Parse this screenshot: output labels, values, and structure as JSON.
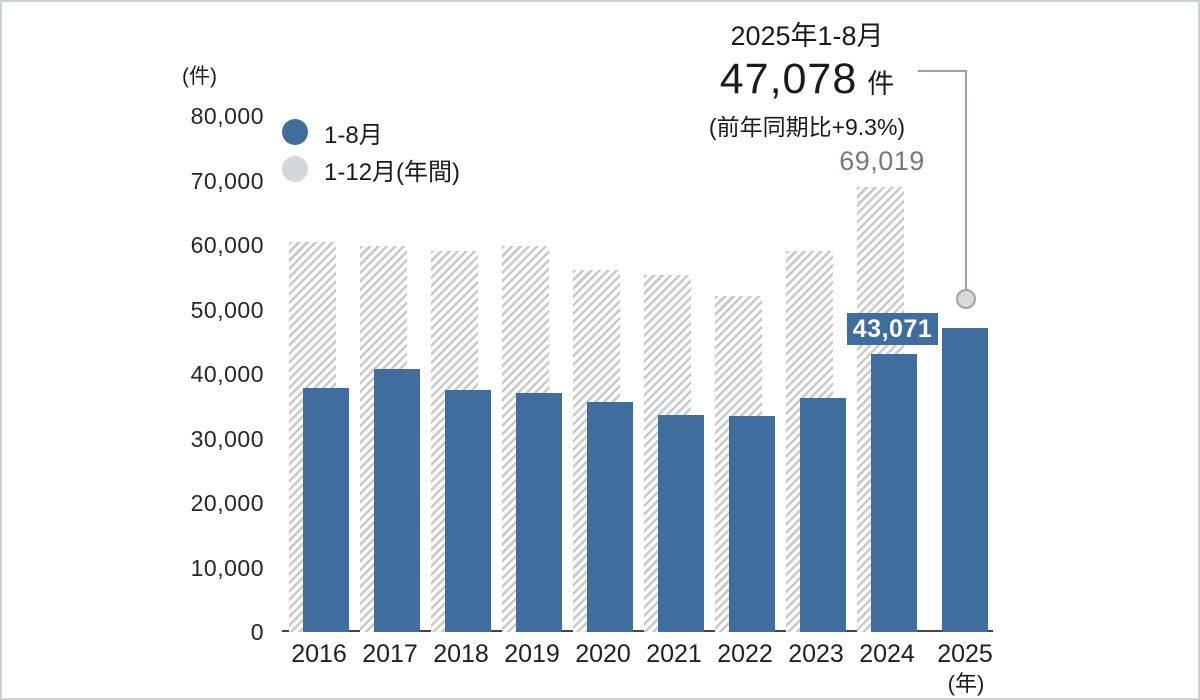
{
  "colors": {
    "bar_partial": "#3f6d9d",
    "bar_annual_hatch": "#c9c9c9",
    "legend_annual_dot": "#d3d7db",
    "annual_label_text": "#6e7a87",
    "connector": "#9aa1a8",
    "axis_line": "#454545"
  },
  "chart_data": {
    "type": "bar",
    "unit_label": "(件)",
    "x_unit_label": "(年)",
    "grid": false,
    "legend_position": "top-left",
    "ylim": [
      0,
      80000
    ],
    "ytick_step": 10000,
    "yticks": [
      {
        "value": 0,
        "label": "0"
      },
      {
        "value": 10000,
        "label": "10,000"
      },
      {
        "value": 20000,
        "label": "20,000"
      },
      {
        "value": 30000,
        "label": "30,000"
      },
      {
        "value": 40000,
        "label": "40,000"
      },
      {
        "value": 50000,
        "label": "50,000"
      },
      {
        "value": 60000,
        "label": "60,000"
      },
      {
        "value": 70000,
        "label": "70,000"
      },
      {
        "value": 80000,
        "label": "80,000"
      }
    ],
    "categories": [
      "2016",
      "2017",
      "2018",
      "2019",
      "2020",
      "2021",
      "2022",
      "2023",
      "2024",
      "2025"
    ],
    "series": [
      {
        "name": "1-8月",
        "key": "partial",
        "color": "#3f6d9d",
        "values": [
          37900,
          40800,
          37500,
          37100,
          35600,
          33700,
          33500,
          36300,
          43071,
          47078
        ]
      },
      {
        "name": "1-12月(年間)",
        "key": "annual",
        "style": "hatched",
        "color": "#c9c9c9",
        "values": [
          60400,
          59900,
          59000,
          59800,
          56100,
          55300,
          52100,
          59100,
          69019,
          null
        ]
      }
    ]
  },
  "annotations": {
    "callout": {
      "title": "2025年1-8月",
      "value": "47,078",
      "unit": "件",
      "subtitle": "(前年同期比+9.3%)"
    },
    "annual_2024_label": "69,019",
    "partial_2024_label": "43,071"
  }
}
